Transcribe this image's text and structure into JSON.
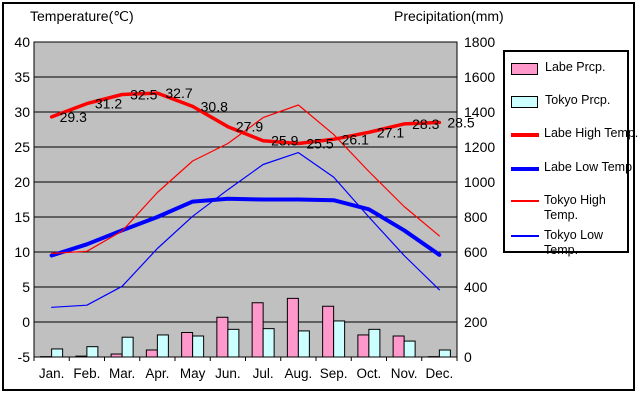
{
  "chart_data": {
    "type": "combo",
    "title": "",
    "categories": [
      "Jan.",
      "Feb.",
      "Mar.",
      "Apr.",
      "May",
      "Jun.",
      "Jul.",
      "Aug.",
      "Sep.",
      "Oct.",
      "Nov.",
      "Dec."
    ],
    "left_axis": {
      "title": "Temperature(℃)",
      "min": -5,
      "max": 40,
      "step": 5,
      "ticks": [
        40,
        35,
        30,
        25,
        20,
        15,
        10,
        5,
        0,
        -5
      ]
    },
    "right_axis": {
      "title": "Precipitation(mm)",
      "min": 0,
      "max": 1800,
      "step": 200,
      "ticks": [
        1800,
        1600,
        1400,
        1200,
        1000,
        800,
        600,
        400,
        200,
        0
      ]
    },
    "grid": "horizontal-only",
    "legend_position": "right",
    "colors": {
      "plot_background": "#C0C0C0",
      "gridline": "#000000",
      "labe_precip": "#FF99CC",
      "tokyo_precip": "#CCFFFF",
      "labe_temp": "#FF0000",
      "labe_low_temp": "#0000FF"
    },
    "series": [
      {
        "name": "Labe Prcp.",
        "type": "bar",
        "axis": "right",
        "color": "#FF99CC",
        "values": [
          2,
          5,
          17,
          40,
          140,
          227,
          310,
          335,
          290,
          126,
          120,
          2
        ]
      },
      {
        "name": "Tokyo Prcp.",
        "type": "bar",
        "axis": "right",
        "color": "#CCFFFF",
        "values": [
          46,
          59,
          113,
          126,
          120,
          158,
          162,
          149,
          206,
          158,
          91,
          40
        ]
      },
      {
        "name": "Labe High Temp.",
        "type": "line",
        "axis": "left",
        "color": "#FF0000",
        "width": 3.5,
        "data_labels": true,
        "values": [
          29.3,
          31.2,
          32.5,
          32.7,
          30.8,
          27.9,
          25.9,
          25.5,
          26.1,
          27.1,
          28.3,
          28.5
        ]
      },
      {
        "name": "Labe Low Temp.",
        "type": "line",
        "axis": "left",
        "color": "#0000FF",
        "width": 4,
        "values": [
          9.5,
          11.1,
          13.1,
          15.0,
          17.2,
          17.6,
          17.5,
          17.5,
          17.4,
          16.1,
          13.1,
          9.6
        ]
      },
      {
        "name": "Tokyo High Temp.",
        "type": "line",
        "axis": "left",
        "color": "#FF0000",
        "width": 1.2,
        "values": [
          9.8,
          10.1,
          13.0,
          18.5,
          23.0,
          25.5,
          29.2,
          31.0,
          26.8,
          21.5,
          16.5,
          12.3
        ]
      },
      {
        "name": "Tokyo Low Temp.",
        "type": "line",
        "axis": "left",
        "color": "#0000FF",
        "width": 1.2,
        "values": [
          2.1,
          2.4,
          5.1,
          10.5,
          15.1,
          18.9,
          22.5,
          24.2,
          20.7,
          15.0,
          9.5,
          4.6
        ]
      }
    ],
    "data_label_values": [
      "29.3",
      "31.2",
      "32.5",
      "32.7",
      "30.8",
      "27.9",
      "25.9",
      "25.5",
      "26.1",
      "27.1",
      "28.3",
      "28.5"
    ],
    "legend_labels": [
      "Labe Prcp.",
      "Tokyo Prcp.",
      "Labe High Temp.",
      "Labe Low Temp.",
      "Tokyo High\nTemp.",
      "Tokyo Low\nTemp."
    ]
  }
}
